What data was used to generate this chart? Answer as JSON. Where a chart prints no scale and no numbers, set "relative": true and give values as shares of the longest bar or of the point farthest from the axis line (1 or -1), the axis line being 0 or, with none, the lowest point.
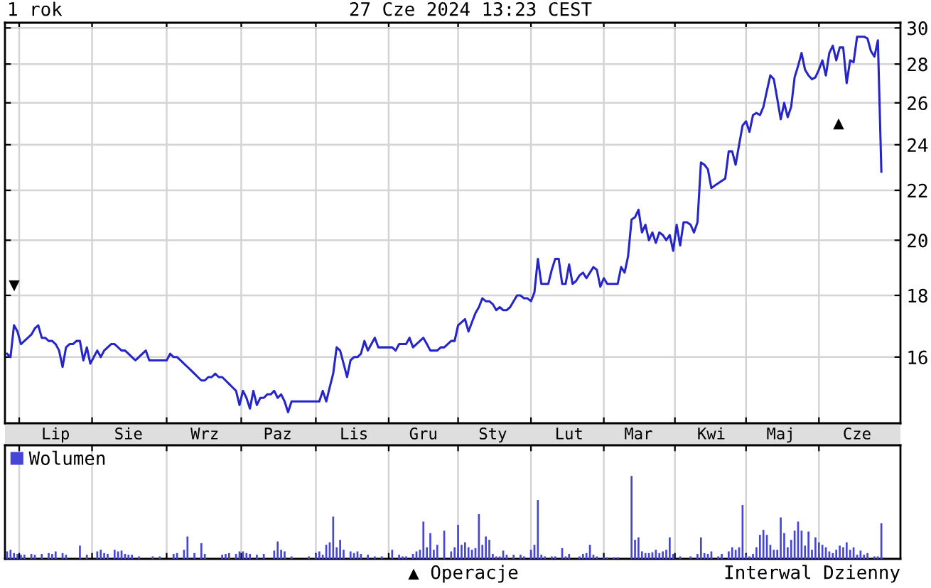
{
  "chart_data": [
    {
      "type": "line",
      "title": "1 rok",
      "subtitle": "27 Cze 2024 13:23 CEST",
      "color": "#2626c8",
      "log": "y",
      "grid": true,
      "ylim": [
        14.1,
        30.3
      ],
      "yticks": [
        16,
        18,
        20,
        22,
        24,
        26,
        28,
        30
      ],
      "categories": [
        null,
        null,
        null,
        null,
        null,
        null,
        null,
        null,
        null,
        null,
        null,
        null,
        null,
        null,
        "Lip",
        null,
        null,
        null,
        null,
        null,
        null,
        null,
        null,
        null,
        null,
        null,
        null,
        null,
        null,
        null,
        null,
        null,
        null,
        null,
        null,
        "Sie",
        null,
        null,
        null,
        null,
        null,
        null,
        null,
        null,
        null,
        null,
        null,
        null,
        null,
        null,
        null,
        null,
        null,
        null,
        null,
        null,
        null,
        "Wrz",
        null,
        null,
        null,
        null,
        null,
        null,
        null,
        null,
        null,
        null,
        null,
        null,
        null,
        null,
        null,
        null,
        null,
        null,
        null,
        null,
        "Paz",
        null,
        null,
        null,
        null,
        null,
        null,
        null,
        null,
        null,
        null,
        null,
        null,
        null,
        null,
        null,
        null,
        null,
        null,
        null,
        null,
        null,
        "Lis",
        null,
        null,
        null,
        null,
        null,
        null,
        null,
        null,
        null,
        null,
        null,
        null,
        null,
        null,
        null,
        null,
        null,
        null,
        null,
        "Gru",
        null,
        null,
        null,
        null,
        null,
        null,
        null,
        null,
        null,
        null,
        null,
        null,
        null,
        null,
        null,
        null,
        null,
        null,
        null,
        "Sty",
        null,
        null,
        null,
        null,
        null,
        null,
        null,
        null,
        null,
        null,
        null,
        null,
        null,
        null,
        null,
        null,
        null,
        null,
        null,
        null,
        null,
        "Lut",
        null,
        null,
        null,
        null,
        null,
        null,
        null,
        null,
        null,
        null,
        null,
        null,
        null,
        null,
        null,
        null,
        null,
        null,
        null,
        "Mar",
        null,
        null,
        null,
        null,
        null,
        null,
        null,
        null,
        null,
        null,
        null,
        null,
        null,
        null,
        null,
        null,
        null,
        null,
        null,
        null,
        "Kwi",
        null,
        null,
        null,
        null,
        null,
        null,
        null,
        null,
        null,
        null,
        null,
        null,
        null,
        null,
        null,
        null,
        null,
        null,
        null,
        "Maj",
        null,
        null,
        null,
        null,
        null,
        null,
        null,
        null,
        null,
        null,
        null,
        null,
        null,
        null,
        null,
        null,
        null,
        null,
        null,
        null,
        null,
        "Cze",
        null,
        null,
        null,
        null,
        null,
        null,
        null
      ],
      "values": [
        16.1,
        16.0,
        17.0,
        16.8,
        16.4,
        16.5,
        16.6,
        16.7,
        16.9,
        17.0,
        16.6,
        16.6,
        16.5,
        16.5,
        16.4,
        16.2,
        15.7,
        16.3,
        16.4,
        16.4,
        16.5,
        16.5,
        15.9,
        16.3,
        15.8,
        16.0,
        16.2,
        16.0,
        16.2,
        16.3,
        16.4,
        16.4,
        16.3,
        16.2,
        16.2,
        16.1,
        16.0,
        15.9,
        16.0,
        16.1,
        16.2,
        15.9,
        15.9,
        15.9,
        15.9,
        15.9,
        15.9,
        16.1,
        16.0,
        16.0,
        15.9,
        15.8,
        15.7,
        15.6,
        15.5,
        15.4,
        15.3,
        15.3,
        15.4,
        15.4,
        15.5,
        15.4,
        15.4,
        15.3,
        15.2,
        15.1,
        15.0,
        14.6,
        15.0,
        14.8,
        14.5,
        15.0,
        14.6,
        14.8,
        14.8,
        14.9,
        14.9,
        15.0,
        14.8,
        14.9,
        14.7,
        14.4,
        14.7,
        14.7,
        14.7,
        14.7,
        14.7,
        14.7,
        14.7,
        14.7,
        14.7,
        15.0,
        14.7,
        15.1,
        15.5,
        16.3,
        16.2,
        15.8,
        15.4,
        15.9,
        16.0,
        16.0,
        16.1,
        16.5,
        16.2,
        16.4,
        16.6,
        16.3,
        16.3,
        16.3,
        16.3,
        16.3,
        16.2,
        16.4,
        16.4,
        16.4,
        16.6,
        16.3,
        16.4,
        16.5,
        16.6,
        16.4,
        16.2,
        16.2,
        16.2,
        16.3,
        16.3,
        16.4,
        16.5,
        16.5,
        17.0,
        17.1,
        17.2,
        16.8,
        17.1,
        17.4,
        17.6,
        17.9,
        17.8,
        17.8,
        17.7,
        17.5,
        17.6,
        17.5,
        17.5,
        17.6,
        17.8,
        18.0,
        18.0,
        17.9,
        17.9,
        17.8,
        18.1,
        19.3,
        18.4,
        18.4,
        18.4,
        18.9,
        19.3,
        19.3,
        18.4,
        18.4,
        19.1,
        18.4,
        18.5,
        18.7,
        18.8,
        18.6,
        18.8,
        19.0,
        18.9,
        18.3,
        18.6,
        18.4,
        18.4,
        18.4,
        18.4,
        19.0,
        18.8,
        19.4,
        20.8,
        20.9,
        21.2,
        20.3,
        20.6,
        20.0,
        20.3,
        19.9,
        20.3,
        20.2,
        20.0,
        20.2,
        19.6,
        20.6,
        19.8,
        20.7,
        20.7,
        20.6,
        20.3,
        20.7,
        23.2,
        23.1,
        22.9,
        22.1,
        22.2,
        22.3,
        22.4,
        22.5,
        23.7,
        23.7,
        23.1,
        24.0,
        24.9,
        25.1,
        24.6,
        25.4,
        25.5,
        25.4,
        25.8,
        26.6,
        27.4,
        27.2,
        26.2,
        25.2,
        26.0,
        25.3,
        25.8,
        27.3,
        27.9,
        28.6,
        27.7,
        27.4,
        27.2,
        27.3,
        27.7,
        28.2,
        27.4,
        28.6,
        29.0,
        28.2,
        28.9,
        28.9,
        27.0,
        28.2,
        28.1,
        29.5,
        29.5,
        29.5,
        29.4,
        28.7,
        28.4,
        29.3,
        22.8
      ],
      "annotations": [
        "▼",
        "▲",
        "▲ Operacje",
        "Interwal Dzienny"
      ]
    },
    {
      "type": "bar",
      "relative": true,
      "grid": "x",
      "legend": "top left",
      "categories": [
        null,
        null,
        null,
        null,
        null,
        null,
        null,
        null,
        null,
        null,
        null,
        null,
        null,
        null,
        null,
        null,
        null,
        null,
        null,
        null,
        null,
        null,
        null,
        null,
        null,
        null,
        null,
        null,
        null,
        null,
        null,
        null,
        null,
        null,
        null,
        null,
        null,
        null,
        null,
        null,
        null,
        null,
        null,
        null,
        null,
        null,
        null,
        null,
        null,
        null,
        null,
        null,
        null,
        null,
        null,
        null,
        null,
        null,
        null,
        null,
        null,
        null,
        null,
        null,
        null,
        null,
        null,
        null,
        null,
        null,
        null,
        null,
        null,
        null,
        null,
        null,
        null,
        null,
        null,
        null,
        null,
        null,
        null,
        null,
        null,
        null,
        null,
        null,
        null,
        null,
        null,
        null,
        null,
        null,
        null,
        null,
        null,
        null,
        null,
        null,
        null,
        null,
        null,
        null,
        null,
        null,
        null,
        null,
        null,
        null,
        null,
        null,
        null,
        null,
        null,
        null,
        null,
        null,
        null,
        null,
        null,
        null,
        null,
        null,
        null,
        null,
        null,
        null,
        null,
        null,
        null,
        null,
        null,
        null,
        null,
        null,
        null,
        null,
        null,
        null,
        null,
        null,
        null,
        null,
        null,
        null,
        null,
        null,
        null,
        null,
        null,
        null,
        null,
        null,
        null,
        null,
        null,
        null,
        null,
        null,
        null,
        null,
        null,
        null,
        null,
        null,
        null,
        null,
        null,
        null,
        null,
        null,
        null,
        null,
        null,
        null,
        null,
        null,
        null,
        null,
        null,
        null,
        null,
        null,
        null,
        null,
        null,
        null,
        null,
        null,
        null,
        null,
        null,
        null,
        null,
        null,
        null,
        null,
        null,
        null,
        null,
        null,
        null,
        null,
        null,
        null,
        null,
        null,
        null,
        null,
        null,
        null,
        null,
        null,
        null,
        null,
        null,
        null,
        null,
        null,
        null,
        null,
        null,
        null,
        null,
        null,
        null,
        null,
        null,
        null,
        null,
        null,
        null,
        null,
        null,
        null,
        null,
        null,
        null,
        null,
        null,
        null,
        null,
        null,
        null,
        null,
        null,
        null,
        null,
        null,
        null,
        null,
        null
      ],
      "series": [
        {
          "name": "Wolumen",
          "color": "#4646d6",
          "values": [
            0.09,
            0.11,
            0.07,
            0.06,
            0.05,
            0.05,
            null,
            0.06,
            0.05,
            null,
            0.06,
            null,
            0.07,
            0.06,
            0.09,
            null,
            0.07,
            0.05,
            null,
            null,
            null,
            0.16,
            null,
            0.05,
            null,
            null,
            0.09,
            0.11,
            0.07,
            0.06,
            null,
            0.11,
            0.09,
            0.1,
            0.06,
            0.05,
            0.05,
            null,
            0.03,
            null,
            null,
            null,
            0.03,
            null,
            0.03,
            null,
            null,
            null,
            0.06,
            0.07,
            null,
            0.11,
            0.27,
            null,
            0.07,
            null,
            0.19,
            0.06,
            null,
            null,
            null,
            null,
            0.05,
            0.06,
            0.07,
            null,
            0.06,
            0.09,
            0.09,
            0.07,
            0.06,
            null,
            0.05,
            null,
            0.06,
            null,
            null,
            0.1,
            0.21,
            0.11,
            0.09,
            null,
            0.03,
            null,
            null,
            null,
            null,
            0.03,
            null,
            0.06,
            0.09,
            0.05,
            0.17,
            0.2,
            0.51,
            0.14,
            0.23,
            0.11,
            null,
            0.09,
            0.07,
            0.09,
            0.06,
            null,
            0.05,
            null,
            0.03,
            null,
            0.03,
            null,
            null,
            0.11,
            null,
            0.05,
            0.03,
            0.03,
            null,
            0.06,
            0.09,
            0.11,
            0.45,
            0.14,
            0.31,
            0.11,
            0.17,
            null,
            0.34,
            null,
            0.09,
            0.14,
            0.41,
            0.17,
            0.2,
            0.14,
            0.11,
            0.13,
            0.54,
            0.17,
            0.27,
            0.23,
            0.06,
            0.03,
            0.03,
            0.1,
            0.05,
            null,
            0.05,
            null,
            0.05,
            0.03,
            null,
            0.11,
            0.17,
            0.71,
            0.05,
            0.03,
            null,
            0.03,
            0.03,
            null,
            0.13,
            0.03,
            0.06,
            null,
            null,
            0.03,
            0.06,
            0.07,
            0.17,
            0.05,
            0.03,
            null,
            0.02,
            0.02,
            null,
            0.02,
            0.02,
            null,
            null,
            null,
            1,
            0.23,
            0.26,
            0.09,
            0.07,
            0.07,
            0.08,
            0.11,
            0.07,
            0.09,
            0.11,
            0.26,
            0.06,
            null,
            0.03,
            null,
            null,
            0.03,
            null,
            0.06,
            0.26,
            0.07,
            0.06,
            0.09,
            null,
            0.03,
            0.06,
            null,
            0.09,
            0.14,
            0.11,
            0.14,
            0.65,
            0.05,
            0.03,
            0.06,
            0.14,
            0.29,
            0.35,
            0.29,
            0.17,
            0.11,
            0.11,
            0.5,
            0.31,
            0.14,
            0.23,
            0.34,
            0.45,
            0.34,
            0.16,
            0.33,
            0.11,
            0.26,
            0.2,
            0.17,
            0.14,
            0.09,
            0.07,
            0.11,
            0.16,
            0.14,
            0.2,
            0.11,
            0.14,
            0.05,
            0.1,
            0.05,
            0.07,
            null,
            0.03,
            0.03,
            0.43
          ]
        }
      ]
    }
  ]
}
